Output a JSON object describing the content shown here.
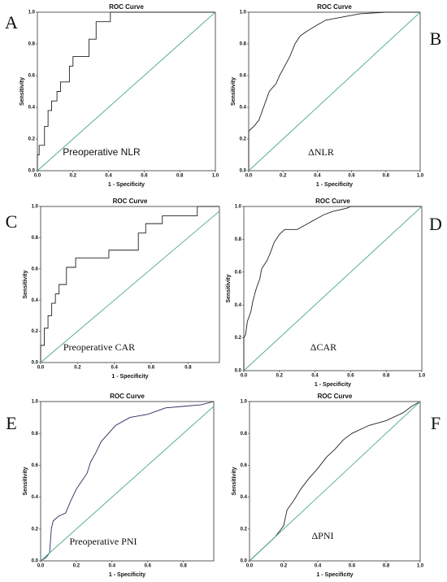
{
  "chart_data": [
    {
      "type": "line",
      "panel_label": "A",
      "title": "ROC Curve",
      "xlabel": "1 - Specificity",
      "ylabel": "Sensitivity",
      "annotation": "Preoperative NLR",
      "xlim": [
        0,
        1
      ],
      "ylim": [
        0,
        1
      ],
      "xticks": [
        {
          "value": 0,
          "label": "0.0"
        },
        {
          "value": 0.2,
          "label": "0.2"
        },
        {
          "value": 0.4,
          "label": "0.4"
        },
        {
          "value": 0.6,
          "label": "0.6"
        },
        {
          "value": 0.8,
          "label": "0.8"
        },
        {
          "value": 1,
          "label": "1.0"
        }
      ],
      "yticks": [
        {
          "value": 0,
          "label": "0.0"
        },
        {
          "value": 0.2,
          "label": "0.2"
        },
        {
          "value": 0.4,
          "label": "0.4"
        },
        {
          "value": 0.6,
          "label": "0.6"
        },
        {
          "value": 0.8,
          "label": "0.8"
        },
        {
          "value": 1,
          "label": "1.0"
        }
      ],
      "series": [
        {
          "color": "#222222",
          "x": [
            0,
            0,
            0.01,
            0.01,
            0.04,
            0.04,
            0.06,
            0.06,
            0.08,
            0.08,
            0.11,
            0.11,
            0.13,
            0.13,
            0.18,
            0.18,
            0.2,
            0.2,
            0.29,
            0.29,
            0.33,
            0.33,
            0.41,
            0.41,
            1
          ],
          "values": [
            0,
            0.1,
            0.1,
            0.16,
            0.16,
            0.28,
            0.28,
            0.38,
            0.38,
            0.44,
            0.44,
            0.5,
            0.5,
            0.56,
            0.56,
            0.66,
            0.66,
            0.72,
            0.72,
            0.83,
            0.83,
            0.94,
            0.94,
            1,
            1
          ]
        },
        {
          "color": "#4aa88a",
          "x": [
            0,
            1
          ],
          "values": [
            0,
            1
          ]
        }
      ]
    },
    {
      "type": "line",
      "panel_label": "B",
      "title": "ROC Curve",
      "xlabel": "1 - Specificity",
      "ylabel": "Sensitivity",
      "annotation": "ΔNLR",
      "xlim": [
        0,
        1
      ],
      "ylim": [
        0,
        1
      ],
      "xticks": [
        {
          "value": 0,
          "label": "0.0"
        },
        {
          "value": 0.2,
          "label": "0.2"
        },
        {
          "value": 0.4,
          "label": "0.4"
        },
        {
          "value": 0.6,
          "label": "0.6"
        },
        {
          "value": 0.8,
          "label": "0.8"
        },
        {
          "value": 1,
          "label": "1.0"
        }
      ],
      "yticks": [
        {
          "value": 0,
          "label": "0.0"
        },
        {
          "value": 0.2,
          "label": "0.2"
        },
        {
          "value": 0.4,
          "label": "0.4"
        },
        {
          "value": 0.6,
          "label": "0.6"
        },
        {
          "value": 0.8,
          "label": "0.8"
        },
        {
          "value": 1,
          "label": "1.0"
        }
      ],
      "series": [
        {
          "color": "#222222",
          "x": [
            0,
            0,
            0.03,
            0.06,
            0.08,
            0.1,
            0.12,
            0.16,
            0.18,
            0.21,
            0.24,
            0.27,
            0.3,
            0.34,
            0.4,
            0.45,
            0.55,
            0.65,
            0.8,
            1
          ],
          "values": [
            0,
            0.25,
            0.28,
            0.32,
            0.38,
            0.44,
            0.5,
            0.55,
            0.6,
            0.66,
            0.72,
            0.8,
            0.85,
            0.88,
            0.92,
            0.95,
            0.97,
            0.99,
            1,
            1
          ]
        },
        {
          "color": "#4aa88a",
          "x": [
            0,
            1
          ],
          "values": [
            0,
            1
          ]
        }
      ]
    },
    {
      "type": "line",
      "panel_label": "C",
      "title": "ROC Curve",
      "xlabel": "1 - Specificity",
      "ylabel": "Sensitivity",
      "annotation": "Preoperative CAR",
      "xlim": [
        0,
        0.97
      ],
      "ylim": [
        0,
        1
      ],
      "xticks": [
        {
          "value": 0,
          "label": "0.0"
        },
        {
          "value": 0.2,
          "label": "0.2"
        },
        {
          "value": 0.4,
          "label": "0.4"
        },
        {
          "value": 0.6,
          "label": "0.6"
        },
        {
          "value": 0.8,
          "label": "0.8"
        }
      ],
      "yticks": [
        {
          "value": 0,
          "label": "0.0"
        },
        {
          "value": 0.2,
          "label": "0.2"
        },
        {
          "value": 0.4,
          "label": "0.4"
        },
        {
          "value": 0.6,
          "label": "0.6"
        },
        {
          "value": 0.8,
          "label": "0.8"
        },
        {
          "value": 1,
          "label": "1.0"
        }
      ],
      "series": [
        {
          "color": "#222222",
          "x": [
            0,
            0,
            0.02,
            0.02,
            0.04,
            0.04,
            0.06,
            0.06,
            0.08,
            0.08,
            0.1,
            0.1,
            0.14,
            0.14,
            0.19,
            0.19,
            0.37,
            0.37,
            0.53,
            0.53,
            0.57,
            0.57,
            0.66,
            0.66,
            0.85,
            0.85,
            0.97
          ],
          "values": [
            0,
            0.11,
            0.11,
            0.22,
            0.22,
            0.3,
            0.3,
            0.38,
            0.38,
            0.44,
            0.44,
            0.5,
            0.5,
            0.61,
            0.61,
            0.67,
            0.67,
            0.72,
            0.72,
            0.83,
            0.83,
            0.89,
            0.89,
            0.94,
            0.94,
            1,
            1
          ]
        },
        {
          "color": "#4aa88a",
          "x": [
            0,
            0.97
          ],
          "values": [
            0,
            0.97
          ]
        }
      ]
    },
    {
      "type": "line",
      "panel_label": "D",
      "title": "ROC Curve",
      "xlabel": "1 - Specificity",
      "ylabel": "Sensitivity",
      "annotation": "ΔCAR",
      "xlim": [
        0,
        1
      ],
      "ylim": [
        0,
        1
      ],
      "xticks": [
        {
          "value": 0,
          "label": "0.0"
        },
        {
          "value": 0.2,
          "label": "0.2"
        },
        {
          "value": 0.4,
          "label": "0.4"
        },
        {
          "value": 0.6,
          "label": "0.6"
        },
        {
          "value": 0.8,
          "label": "0.8"
        },
        {
          "value": 1,
          "label": "1.0"
        }
      ],
      "yticks": [
        {
          "value": 0,
          "label": "0.0"
        },
        {
          "value": 0.2,
          "label": "0.2"
        },
        {
          "value": 0.4,
          "label": "0.4"
        },
        {
          "value": 0.6,
          "label": "0.6"
        },
        {
          "value": 0.8,
          "label": "0.8"
        },
        {
          "value": 1,
          "label": "1.0"
        }
      ],
      "series": [
        {
          "color": "#222222",
          "x": [
            0,
            0,
            0.01,
            0.02,
            0.04,
            0.05,
            0.07,
            0.09,
            0.1,
            0.13,
            0.15,
            0.17,
            0.2,
            0.23,
            0.3,
            0.35,
            0.4,
            0.45,
            0.5,
            0.58,
            0.6,
            1
          ],
          "values": [
            0,
            0.2,
            0.22,
            0.3,
            0.36,
            0.42,
            0.5,
            0.56,
            0.62,
            0.67,
            0.72,
            0.78,
            0.83,
            0.86,
            0.86,
            0.89,
            0.92,
            0.95,
            0.97,
            0.99,
            1,
            1
          ]
        },
        {
          "color": "#4aa88a",
          "x": [
            0,
            1
          ],
          "values": [
            0,
            1
          ]
        }
      ]
    },
    {
      "type": "line",
      "panel_label": "E",
      "title": "ROC Curve",
      "xlabel": "1 - Specificity",
      "ylabel": "Sensitivity",
      "annotation": "Preoperative PNI",
      "xlim": [
        0,
        0.97
      ],
      "ylim": [
        0,
        1
      ],
      "xticks": [
        {
          "value": 0,
          "label": "0.0"
        },
        {
          "value": 0.2,
          "label": "0.2"
        },
        {
          "value": 0.4,
          "label": "0.4"
        },
        {
          "value": 0.6,
          "label": "0.6"
        },
        {
          "value": 0.8,
          "label": "0.8"
        }
      ],
      "yticks": [
        {
          "value": 0,
          "label": "0.0"
        },
        {
          "value": 0.2,
          "label": "0.2"
        },
        {
          "value": 0.4,
          "label": "0.4"
        },
        {
          "value": 0.6,
          "label": "0.6"
        },
        {
          "value": 0.8,
          "label": "0.8"
        },
        {
          "value": 1,
          "label": "1.0"
        }
      ],
      "series": [
        {
          "color": "#2a2a5a",
          "x": [
            0,
            0.03,
            0.05,
            0.06,
            0.07,
            0.1,
            0.14,
            0.17,
            0.2,
            0.23,
            0.26,
            0.28,
            0.31,
            0.34,
            0.38,
            0.42,
            0.5,
            0.6,
            0.7,
            0.8,
            0.9,
            0.97
          ],
          "values": [
            0,
            0.02,
            0.05,
            0.2,
            0.25,
            0.28,
            0.3,
            0.38,
            0.45,
            0.5,
            0.55,
            0.62,
            0.68,
            0.75,
            0.8,
            0.85,
            0.9,
            0.92,
            0.96,
            0.97,
            0.98,
            1
          ]
        },
        {
          "color": "#4aa88a",
          "x": [
            0,
            0.97
          ],
          "values": [
            0,
            0.97
          ]
        }
      ]
    },
    {
      "type": "line",
      "panel_label": "F",
      "title": "ROC Curve",
      "xlabel": "1 - Specificity",
      "ylabel": "Sensitivity",
      "annotation": "ΔPNI",
      "xlim": [
        0,
        1
      ],
      "ylim": [
        0,
        1
      ],
      "xticks": [
        {
          "value": 0,
          "label": "0.0"
        },
        {
          "value": 0.2,
          "label": "0.2"
        },
        {
          "value": 0.4,
          "label": "0.4"
        },
        {
          "value": 0.6,
          "label": "0.6"
        },
        {
          "value": 0.8,
          "label": "0.8"
        },
        {
          "value": 1,
          "label": "1.0"
        }
      ],
      "yticks": [
        {
          "value": 0,
          "label": "0.0"
        },
        {
          "value": 0.2,
          "label": "0.2"
        },
        {
          "value": 0.4,
          "label": "0.4"
        },
        {
          "value": 0.6,
          "label": "0.6"
        },
        {
          "value": 0.8,
          "label": "0.8"
        },
        {
          "value": 1,
          "label": "1.0"
        }
      ],
      "series": [
        {
          "color": "#222222",
          "x": [
            0,
            0.05,
            0.1,
            0.15,
            0.2,
            0.22,
            0.26,
            0.3,
            0.35,
            0.4,
            0.45,
            0.5,
            0.55,
            0.6,
            0.7,
            0.8,
            0.9,
            0.95,
            1
          ],
          "values": [
            0,
            0.05,
            0.1,
            0.15,
            0.22,
            0.32,
            0.38,
            0.45,
            0.52,
            0.58,
            0.65,
            0.7,
            0.76,
            0.8,
            0.85,
            0.88,
            0.93,
            0.97,
            1
          ]
        },
        {
          "color": "#4aa88a",
          "x": [
            0,
            1
          ],
          "values": [
            0,
            1
          ]
        }
      ]
    }
  ]
}
